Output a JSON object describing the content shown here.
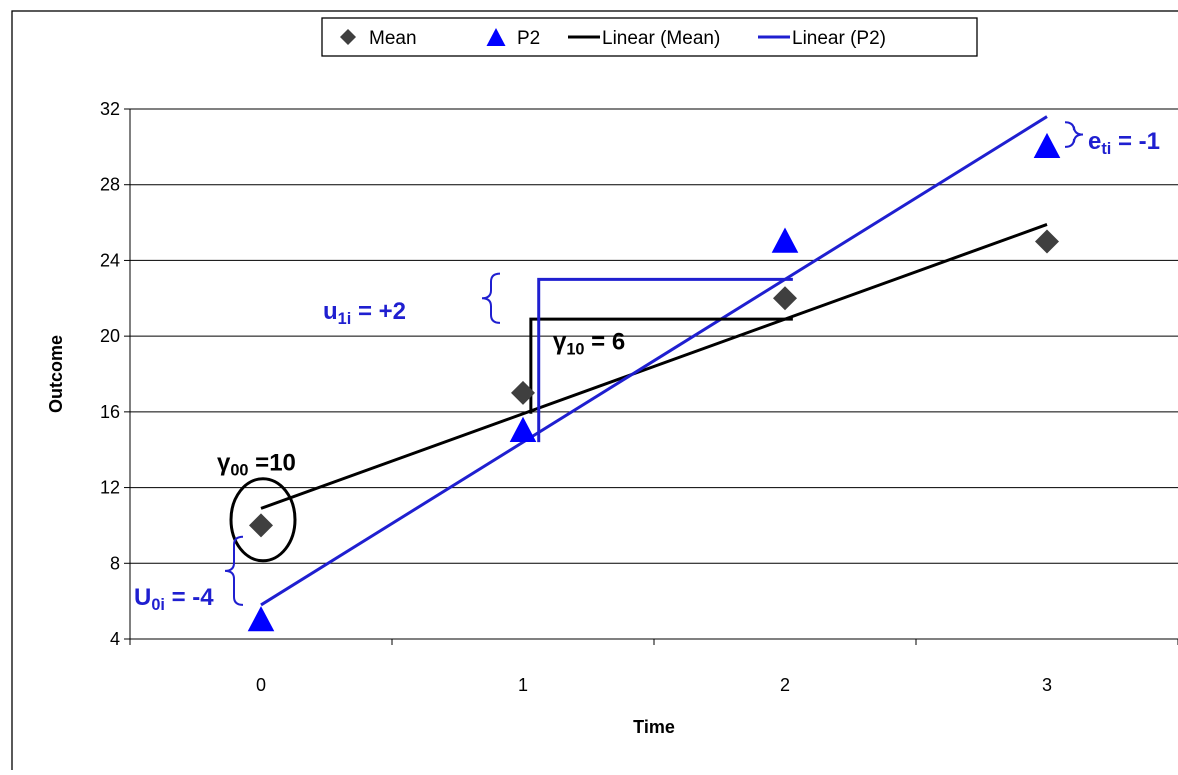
{
  "chart_data": {
    "type": "scatter",
    "x": [
      0,
      1,
      2,
      3
    ],
    "xlim": [
      -0.5,
      3.5
    ],
    "ylim": [
      4,
      32
    ],
    "x_ticks": [
      0,
      1,
      2,
      3
    ],
    "y_ticks": [
      4,
      8,
      12,
      16,
      20,
      24,
      28,
      32
    ],
    "xlabel": "Time",
    "ylabel": "Outcome",
    "grid": "horizontal",
    "legend_position": "top",
    "series": [
      {
        "name": "Mean",
        "marker": "diamond",
        "color": "#3f3f3f",
        "values": [
          10,
          17,
          22,
          25
        ]
      },
      {
        "name": "P2",
        "marker": "triangle",
        "color": "#0000ff",
        "values": [
          5,
          15,
          25,
          30
        ]
      }
    ],
    "trendlines": [
      {
        "name": "Linear (Mean)",
        "color": "#000000",
        "intercept": 10.9,
        "slope": 5.0
      },
      {
        "name": "Linear (P2)",
        "color": "#1f1fd0",
        "intercept": 5.8,
        "slope": 8.6
      }
    ],
    "annotations": {
      "gamma00": {
        "symbol": "γ",
        "sub": "00",
        "text": " =10"
      },
      "gamma10": {
        "symbol": "γ",
        "sub": "10",
        "text": " = 6"
      },
      "u0i": {
        "symbol": "U",
        "sub": "0i",
        "text": " = -4"
      },
      "u1i": {
        "symbol": "u",
        "sub": "1i",
        "text": " = +2"
      },
      "eti": {
        "symbol": "e",
        "sub": "ti",
        "text": " = -1"
      }
    },
    "colors": {
      "mean": "#3f3f3f",
      "p2": "#0000ff",
      "trend_p2": "#1f1fd0",
      "annotation_blue": "#1f1fd0",
      "grid": "#000000"
    }
  }
}
